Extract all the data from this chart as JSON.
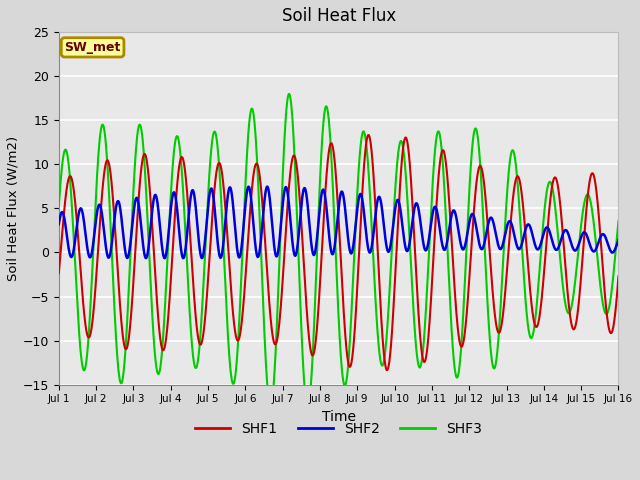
{
  "title": "Soil Heat Flux",
  "xlabel": "Time",
  "ylabel": "Soil Heat Flux (W/m2)",
  "ylim": [
    -15,
    25
  ],
  "yticks": [
    -15,
    -10,
    -5,
    0,
    5,
    10,
    15,
    20,
    25
  ],
  "xtick_labels": [
    "Jul 1",
    "Jul 2",
    "Jul 3",
    "Jul 4",
    "Jul 5",
    "Jul 6",
    "Jul 7",
    "Jul 8",
    "Jul 9",
    "Jul 10",
    "Jul 11",
    "Jul 12",
    "Jul 13",
    "Jul 14",
    "Jul 15",
    "Jul 16"
  ],
  "colors": {
    "SHF1": "#cc0000",
    "SHF2": "#0000dd",
    "SHF3": "#00cc00"
  },
  "annotation_text": "SW_met",
  "annotation_box_color": "#ffff99",
  "annotation_border_color": "#aa8800",
  "annotation_text_color": "#660000",
  "fig_bg_color": "#d8d8d8",
  "plot_bg_color": "#e8e8e8",
  "grid_color": "white",
  "linewidth": 1.5
}
